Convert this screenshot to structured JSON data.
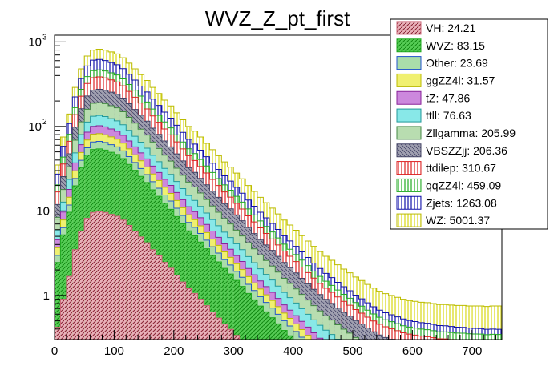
{
  "chart_data": {
    "type": "area",
    "title": "WVZ_Z_pt_first",
    "xlabel": "",
    "ylabel": "",
    "xlim": [
      0,
      750
    ],
    "ylim": [
      0.3,
      1200
    ],
    "y_scale": "log",
    "bin_width": 10,
    "stacked": true,
    "x_ticks": [
      0,
      100,
      200,
      300,
      400,
      500,
      600,
      700
    ],
    "y_ticks": [
      {
        "value": 1,
        "base": "1",
        "exp": ""
      },
      {
        "value": 10,
        "base": "10",
        "exp": ""
      },
      {
        "value": 100,
        "base": "10",
        "exp": "2"
      },
      {
        "value": 1000,
        "base": "10",
        "exp": "3"
      }
    ],
    "legend_position": "top-right",
    "stack_totals": {
      "x": [
        5,
        15,
        25,
        35,
        45,
        55,
        65,
        75,
        85,
        95,
        105,
        115,
        125,
        135,
        145,
        155,
        165,
        175,
        185,
        195,
        205,
        215,
        225,
        235,
        245,
        255,
        265,
        275,
        285,
        295,
        305,
        315,
        325,
        335,
        345,
        355,
        365,
        375,
        385,
        395,
        405,
        415,
        425,
        435,
        445,
        455,
        465,
        475,
        485,
        495,
        505,
        515,
        525,
        535,
        545,
        555,
        565,
        575,
        585,
        595,
        605,
        615,
        625,
        635,
        645,
        655,
        665,
        675,
        685,
        695,
        705,
        715,
        725,
        735,
        745
      ],
      "values": [
        35,
        75,
        140,
        290,
        480,
        680,
        800,
        820,
        800,
        760,
        720,
        650,
        560,
        480,
        410,
        350,
        290,
        245,
        205,
        175,
        145,
        120,
        100,
        88,
        75,
        63,
        53,
        45,
        38,
        33,
        28,
        24,
        20,
        17,
        14.5,
        12.5,
        10.8,
        9.2,
        7.8,
        6.8,
        5.9,
        5.1,
        4.4,
        3.8,
        3.3,
        2.9,
        2.6,
        2.3,
        2.05,
        1.85,
        1.65,
        1.5,
        1.35,
        1.22,
        1.12,
        1.05,
        1.0,
        0.95,
        0.9,
        0.87,
        0.85,
        0.83,
        0.82,
        0.8,
        0.78,
        0.78,
        0.77,
        0.76,
        0.76,
        0.75,
        0.75,
        0.75,
        0.74,
        0.75,
        0.75
      ]
    },
    "series": [
      {
        "name": "VH: 24.21",
        "color": "#cc6677",
        "fill": "#cc6677",
        "pattern": "hatch-dense"
      },
      {
        "name": "WVZ: 83.15",
        "color": "#22aa22",
        "fill": "#44cc44",
        "pattern": "hatch-dense"
      },
      {
        "name": "Other: 23.69",
        "color": "#2255cc",
        "fill": "#aaddaa",
        "pattern": "solid"
      },
      {
        "name": "ggZZ4l: 31.57",
        "color": "#bbbb00",
        "fill": "#f0f070",
        "pattern": "solid"
      },
      {
        "name": "tZ: 47.86",
        "color": "#882299",
        "fill": "#cc88dd",
        "pattern": "solid"
      },
      {
        "name": "ttll: 76.63",
        "color": "#229999",
        "fill": "#88e8e8",
        "pattern": "solid"
      },
      {
        "name": "Zllgamma: 205.99",
        "color": "#448844",
        "fill": "#b8ddb0",
        "pattern": "solid"
      },
      {
        "name": "VBSZZjj: 206.36",
        "color": "#444466",
        "fill": "#aaaabb",
        "pattern": "hatch-dense"
      },
      {
        "name": "ttdilep: 310.67",
        "color": "#dd2222",
        "fill": "#ffffff",
        "pattern": "vertical-red"
      },
      {
        "name": "qqZZ4l: 459.09",
        "color": "#22aa22",
        "fill": "#ffffff",
        "pattern": "vertical-green"
      },
      {
        "name": "Zjets: 1263.08",
        "color": "#1111aa",
        "fill": "#ffffff",
        "pattern": "vertical-blue"
      },
      {
        "name": "WZ: 5001.37",
        "color": "#bbbb00",
        "fill": "#ffff99",
        "pattern": "vertical-yellow"
      }
    ]
  }
}
